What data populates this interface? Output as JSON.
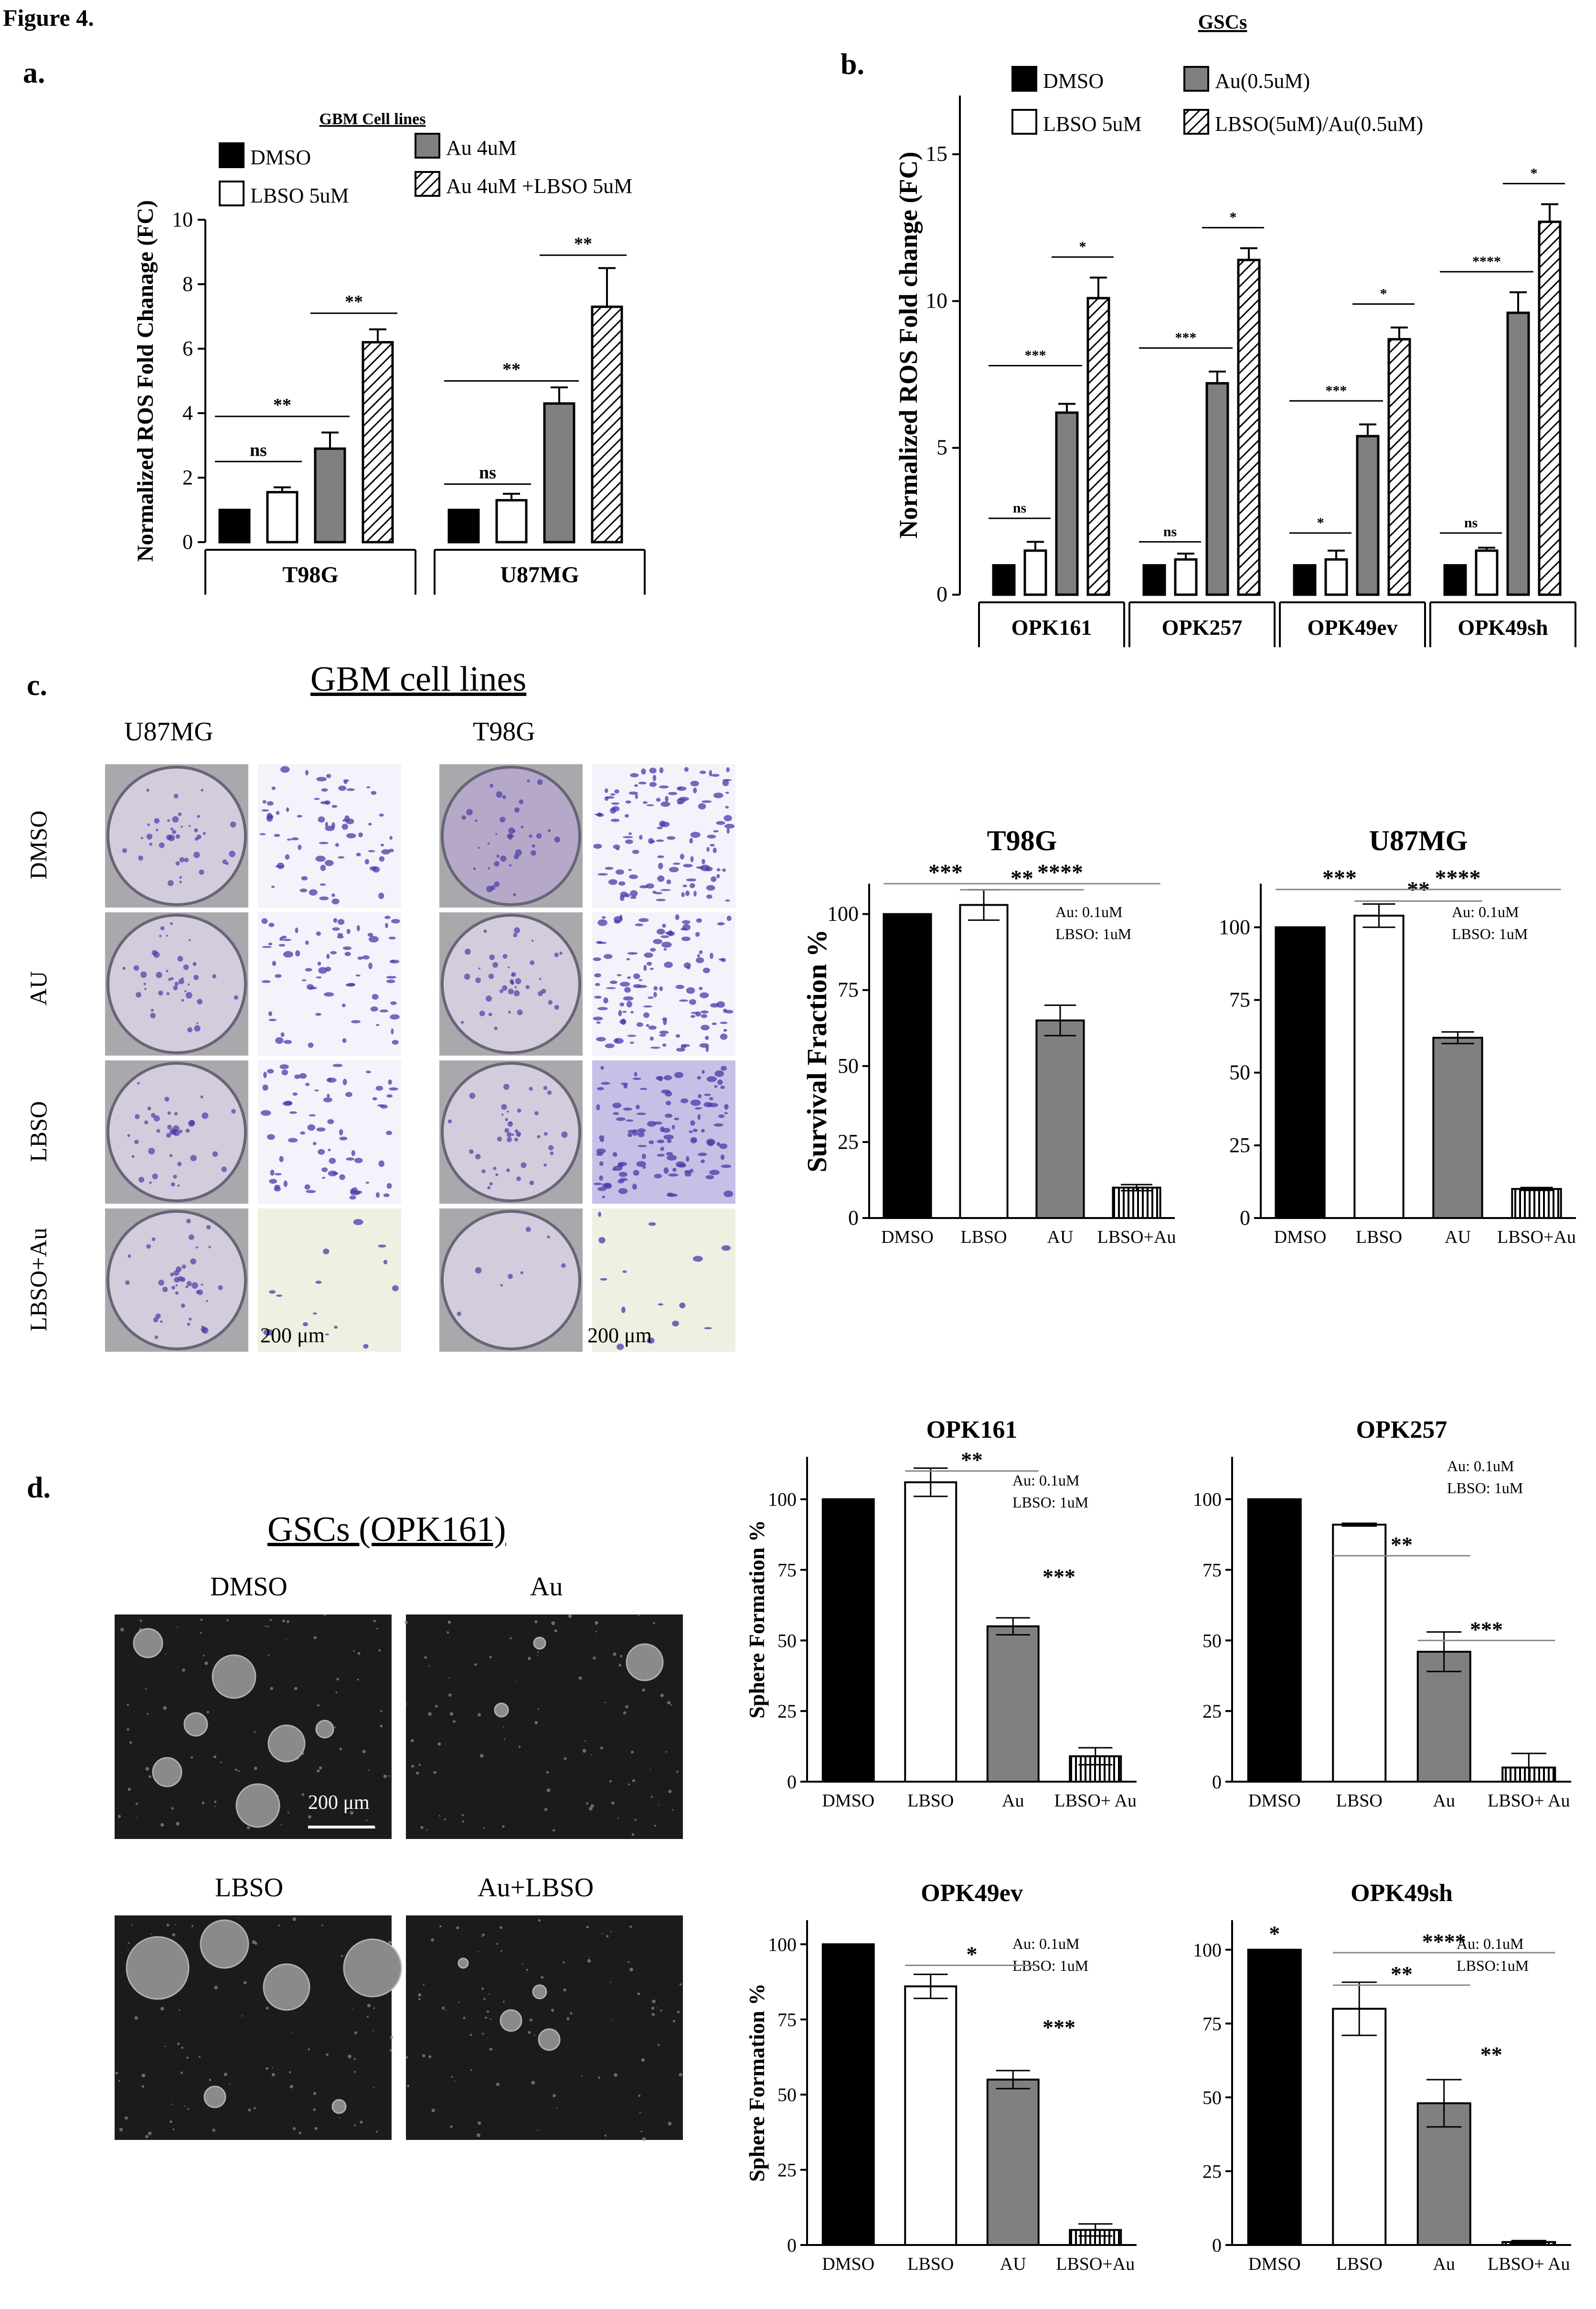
{
  "figure_title": "Figure 4.",
  "panels": {
    "a": "a.",
    "b": "b.",
    "c": "c.",
    "d": "d."
  },
  "colors": {
    "dmso": "#000000",
    "lbso": "#ffffff",
    "au": "#808080",
    "combo": "hatched",
    "stain": "#4b3aa8",
    "sphere_bg": "#1b1b1b"
  },
  "panel_c": {
    "title": "GBM cell lines",
    "col_labels": [
      "U87MG",
      "T98G"
    ],
    "row_labels": [
      "DMSO",
      "AU",
      "LBSO",
      "LBSO+Au"
    ],
    "scale_bars": [
      "200 μm",
      "200 μm"
    ]
  },
  "panel_d": {
    "title": "GSCs (OPK161)",
    "image_labels": [
      "DMSO",
      "Au",
      "LBSO",
      "Au+LBSO"
    ],
    "scale_bar": "200 μm"
  },
  "chart_data": [
    {
      "id": "a",
      "type": "bar",
      "title": "GBM Cell lines",
      "ylabel": "Normalized ROS Fold Chanage (FC)",
      "ylim": [
        0,
        10
      ],
      "yticks": [
        0,
        2,
        4,
        6,
        8,
        10
      ],
      "groups": [
        "T98G",
        "U87MG"
      ],
      "series": [
        {
          "name": "DMSO",
          "values": [
            1.0,
            1.0
          ],
          "errors": [
            0,
            0
          ]
        },
        {
          "name": "LBSO 5uM",
          "values": [
            1.55,
            1.3
          ],
          "errors": [
            0.15,
            0.2
          ]
        },
        {
          "name": "Au 4uM",
          "values": [
            2.9,
            4.3
          ],
          "errors": [
            0.5,
            0.5
          ]
        },
        {
          "name": "Au 4uM +LBSO 5uM",
          "values": [
            6.2,
            7.3
          ],
          "errors": [
            0.4,
            1.2
          ]
        }
      ],
      "significance": [
        {
          "group": 0,
          "label": "ns",
          "value": 2.5
        },
        {
          "group": 0,
          "label": "**",
          "value": 3.9
        },
        {
          "group": 0,
          "label": "**",
          "value": 7.1
        },
        {
          "group": 1,
          "label": "ns",
          "value": 1.8
        },
        {
          "group": 1,
          "label": "**",
          "value": 5.0
        },
        {
          "group": 1,
          "label": "**",
          "value": 8.9
        }
      ]
    },
    {
      "id": "b",
      "type": "bar",
      "title": "GSCs",
      "ylabel": "Normalized ROS Fold change (FC)",
      "ylim": [
        0,
        17
      ],
      "yticks": [
        0,
        5,
        10,
        15
      ],
      "groups": [
        "OPK161",
        "OPK257",
        "OPK49ev",
        "OPK49sh"
      ],
      "series": [
        {
          "name": "DMSO",
          "values": [
            1.0,
            1.0,
            1.0,
            1.0
          ],
          "errors": [
            0,
            0,
            0,
            0
          ]
        },
        {
          "name": "LBSO 5uM",
          "values": [
            1.5,
            1.2,
            1.2,
            1.5
          ],
          "errors": [
            0.3,
            0.2,
            0.3,
            0.1
          ]
        },
        {
          "name": "Au(0.5uM)",
          "values": [
            6.2,
            7.2,
            5.4,
            9.6
          ],
          "errors": [
            0.3,
            0.4,
            0.4,
            0.7
          ]
        },
        {
          "name": "LBSO(5uM)/Au(0.5uM)",
          "values": [
            10.1,
            11.4,
            8.7,
            12.7
          ],
          "errors": [
            0.7,
            0.4,
            0.4,
            0.6
          ]
        }
      ],
      "significance": [
        {
          "group": 0,
          "label": "ns",
          "value": 2.6
        },
        {
          "group": 0,
          "label": "***",
          "value": 7.8
        },
        {
          "group": 0,
          "label": "*",
          "value": 11.5
        },
        {
          "group": 1,
          "label": "ns",
          "value": 1.8
        },
        {
          "group": 1,
          "label": "***",
          "value": 8.4
        },
        {
          "group": 1,
          "label": "*",
          "value": 12.5
        },
        {
          "group": 2,
          "label": "*",
          "value": 2.1
        },
        {
          "group": 2,
          "label": "***",
          "value": 6.6
        },
        {
          "group": 2,
          "label": "*",
          "value": 9.9
        },
        {
          "group": 3,
          "label": "ns",
          "value": 2.1
        },
        {
          "group": 3,
          "label": "****",
          "value": 11.0
        },
        {
          "group": 3,
          "label": "*",
          "value": 14.0
        }
      ]
    },
    {
      "id": "c1",
      "type": "bar",
      "title": "T98G",
      "ylabel": "Survival Fraction %",
      "ylim": [
        0,
        110
      ],
      "yticks": [
        0,
        25,
        50,
        75,
        100
      ],
      "categories": [
        "DMSO",
        "LBSO",
        "AU",
        "LBSO+Au"
      ],
      "values": [
        100,
        103,
        65,
        10
      ],
      "errors": [
        0,
        5,
        5,
        1
      ],
      "annotation": [
        "Au: 0.1uM",
        "LBSO: 1uM"
      ],
      "significance": [
        {
          "label": "***",
          "from": 0,
          "to": 1,
          "value": 110
        },
        {
          "label": "**",
          "from": 1,
          "to": 2,
          "value": 108
        },
        {
          "label": "****",
          "from": 1,
          "to": 3,
          "value": 110
        }
      ]
    },
    {
      "id": "c2",
      "type": "bar",
      "title": "U87MG",
      "ylabel": "",
      "ylim": [
        0,
        115
      ],
      "yticks": [
        0,
        25,
        50,
        75,
        100
      ],
      "categories": [
        "DMSO",
        "LBSO",
        "AU",
        "LBSO+Au"
      ],
      "values": [
        100,
        104,
        62,
        10
      ],
      "errors": [
        0,
        4,
        2,
        0.5
      ],
      "annotation": [
        "Au: 0.1uM",
        "LBSO: 1uM"
      ],
      "significance": [
        {
          "label": "***",
          "from": 0,
          "to": 1,
          "value": 113
        },
        {
          "label": "**",
          "from": 1,
          "to": 2,
          "value": 109
        },
        {
          "label": "****",
          "from": 1,
          "to": 3,
          "value": 113
        }
      ]
    },
    {
      "id": "d1",
      "type": "bar",
      "title": "OPK161",
      "ylabel": "Sphere Formation %",
      "ylim": [
        0,
        115
      ],
      "yticks": [
        0,
        25,
        50,
        75,
        100
      ],
      "categories": [
        "DMSO",
        "LBSO",
        "Au",
        "LBSO+ Au"
      ],
      "values": [
        100,
        106,
        55,
        9
      ],
      "errors": [
        0,
        5,
        3,
        3
      ],
      "annotation": [
        "Au: 0.1uM",
        "LBSO: 1uM"
      ],
      "significance": [
        {
          "label": "**",
          "from": 1,
          "to": 2,
          "value": 110
        },
        {
          "label": "***",
          "at": 2,
          "value": 70
        }
      ]
    },
    {
      "id": "d2",
      "type": "bar",
      "title": "OPK257",
      "ylabel": "",
      "ylim": [
        0,
        115
      ],
      "yticks": [
        0,
        25,
        50,
        75,
        100
      ],
      "categories": [
        "DMSO",
        "LBSO",
        "Au",
        "LBSO+ Au"
      ],
      "values": [
        100,
        91,
        46,
        5
      ],
      "errors": [
        0,
        0.5,
        7,
        5
      ],
      "annotation": [
        "Au: 0.1uM",
        "LBSO: 1uM"
      ],
      "significance": [
        {
          "label": "**",
          "from": 1,
          "to": 2,
          "value": 80
        },
        {
          "label": "***",
          "from": 2,
          "to": 3,
          "value": 50
        }
      ]
    },
    {
      "id": "d3",
      "type": "bar",
      "title": "OPK49ev",
      "ylabel": "Sphere Formation  %",
      "ylim": [
        0,
        108
      ],
      "yticks": [
        0,
        25,
        50,
        75,
        100
      ],
      "categories": [
        "DMSO",
        "LBSO",
        "AU",
        "LBSO+Au"
      ],
      "values": [
        100,
        86,
        55,
        5
      ],
      "errors": [
        0,
        4,
        3,
        2
      ],
      "annotation": [
        "Au: 0.1uM",
        "LBSO: 1uM"
      ],
      "significance": [
        {
          "label": "*",
          "from": 1,
          "to": 2,
          "value": 93
        },
        {
          "label": "***",
          "at": 2,
          "value": 70
        }
      ]
    },
    {
      "id": "d4",
      "type": "bar",
      "title": "OPK49sh",
      "ylabel": "",
      "ylim": [
        0,
        110
      ],
      "yticks": [
        0,
        25,
        50,
        75,
        100
      ],
      "categories": [
        "DMSO",
        "LBSO",
        "Au",
        "LBSO+ Au"
      ],
      "values": [
        100,
        80,
        48,
        1
      ],
      "errors": [
        0,
        9,
        8,
        0.5
      ],
      "annotation": [
        "Au: 0.1uM",
        "LBSO:1uM"
      ],
      "significance": [
        {
          "label": "*",
          "at": 0,
          "value": 103
        },
        {
          "label": "****",
          "from": 1,
          "to": 3,
          "value": 99
        },
        {
          "label": "**",
          "from": 1,
          "to": 2,
          "value": 88
        },
        {
          "label": "**",
          "at": 2,
          "value": 62
        }
      ]
    }
  ]
}
